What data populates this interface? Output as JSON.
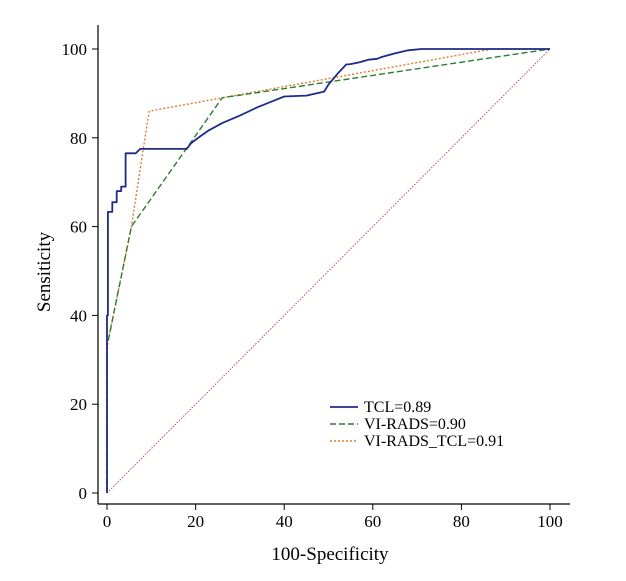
{
  "chart_data": {
    "type": "line",
    "title": "",
    "xlabel": "100-Specificity",
    "ylabel": "Sensiticity",
    "xlim": [
      0,
      100
    ],
    "ylim": [
      0,
      100
    ],
    "x_ticks": [
      0,
      20,
      40,
      60,
      80,
      100
    ],
    "y_ticks": [
      0,
      20,
      40,
      60,
      80,
      100
    ],
    "grid": false,
    "legend_position": "bottom-right",
    "reference_line": {
      "x": [
        0,
        100
      ],
      "y": [
        0,
        100
      ],
      "color": "#c0504d"
    },
    "series": [
      {
        "name": "TCL=0.89",
        "color": "#1f2a8a",
        "dash": "solid",
        "x": [
          0,
          0,
          0,
          0.2,
          0.2,
          1.2,
          1.2,
          2.2,
          2.2,
          3.2,
          3.2,
          4.2,
          4.2,
          6.5,
          7.5,
          7.5,
          10,
          13,
          16,
          18,
          19,
          21,
          23,
          26,
          30,
          34,
          38,
          40,
          42,
          45,
          49,
          50,
          52,
          54,
          55,
          57,
          59,
          61,
          62,
          65,
          68,
          71,
          72,
          80,
          90,
          100
        ],
        "y": [
          0,
          33.5,
          40,
          40,
          63.3,
          63.3,
          65.5,
          65.5,
          68,
          68,
          69,
          69,
          76.5,
          76.5,
          77.5,
          77.5,
          77.5,
          77.5,
          77.5,
          77.5,
          78.8,
          80.3,
          81.7,
          83.3,
          85,
          86.9,
          88.5,
          89.3,
          89.4,
          89.5,
          90.4,
          92,
          94.4,
          96.5,
          96.6,
          97,
          97.6,
          97.8,
          98.2,
          99,
          99.7,
          100,
          100,
          100,
          100,
          100
        ]
      },
      {
        "name": "VI-RADS=0.90",
        "color": "#2e7d32",
        "dash": "dashed",
        "x": [
          0,
          0,
          5.5,
          26,
          100
        ],
        "y": [
          0,
          33,
          60,
          89,
          100
        ]
      },
      {
        "name": "VI-RADS_TCL=0.91",
        "color": "#e07b28",
        "dash": "dotted",
        "x": [
          0,
          0,
          5.5,
          9.5,
          26,
          87,
          100
        ],
        "y": [
          0,
          33,
          60,
          86,
          89,
          100,
          100
        ]
      }
    ]
  }
}
